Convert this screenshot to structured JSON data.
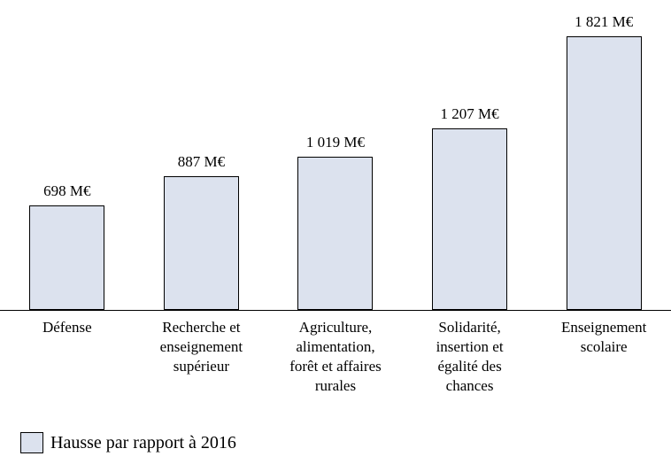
{
  "chart_data": {
    "type": "bar",
    "categories": [
      "Défense",
      "Recherche et\nenseignement\nsupérieur",
      "Agriculture,\nalimentation,\nforêt et affaires\nrurales",
      "Solidarité,\ninsertion et\négalité des\nchances",
      "Enseignement\nscolaire"
    ],
    "values": [
      698,
      887,
      1019,
      1207,
      1821
    ],
    "value_labels": [
      "698 M€",
      "887 M€",
      "1 019 M€",
      "1 207 M€",
      "1 821 M€"
    ],
    "unit": "M€",
    "title": "",
    "xlabel": "",
    "ylabel": "",
    "ylim": [
      0,
      2070
    ],
    "grid": false,
    "legend": "Hausse par rapport à 2016",
    "legend_position": "bottom-left"
  },
  "colors": {
    "bar_fill": "#dce2ee",
    "bar_border": "#000000",
    "axis_line": "#000000",
    "background": "#ffffff"
  }
}
